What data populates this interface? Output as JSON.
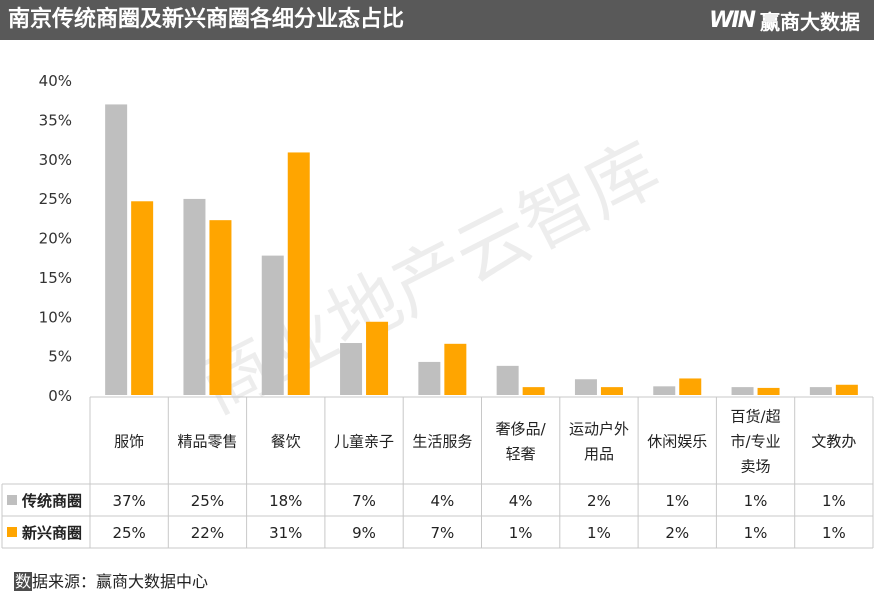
{
  "header": {
    "title": "南京传统商圈及新兴商圈各细分业态占比",
    "logo_mark": "WIN",
    "brand": "赢商大数据"
  },
  "watermark": "商业地产云智库",
  "source": {
    "first_char": "数",
    "rest": "据来源：赢商大数据中心"
  },
  "colors": {
    "traditional": "#bfbfbf",
    "emerging": "#ffa500",
    "header_bg": "#595959"
  },
  "chart_data": {
    "type": "bar",
    "title": "",
    "xlabel": "",
    "ylabel": "",
    "ylim": [
      0,
      40
    ],
    "yticks": [
      0,
      5,
      10,
      15,
      20,
      25,
      30,
      35,
      40
    ],
    "ytick_labels": [
      "0%",
      "5%",
      "10%",
      "15%",
      "20%",
      "25%",
      "30%",
      "35%",
      "40%"
    ],
    "grid": false,
    "legend": "in data table",
    "categories": [
      [
        "服饰"
      ],
      [
        "精品零售"
      ],
      [
        "餐饮"
      ],
      [
        "儿童亲子"
      ],
      [
        "生活服务"
      ],
      [
        "奢侈品/",
        "轻奢"
      ],
      [
        "运动户外",
        "用品"
      ],
      [
        "休闲娱乐"
      ],
      [
        "百货/超",
        "市/专业",
        "卖场"
      ],
      [
        "文教办"
      ]
    ],
    "series": [
      {
        "name": "传统商圈",
        "color": "#bfbfbf",
        "values": [
          36.9,
          24.9,
          17.7,
          6.6,
          4.2,
          3.7,
          2.0,
          1.1,
          1.0,
          1.0
        ],
        "labels": [
          "37%",
          "25%",
          "18%",
          "7%",
          "4%",
          "4%",
          "2%",
          "1%",
          "1%",
          "1%"
        ]
      },
      {
        "name": "新兴商圈",
        "color": "#ffa500",
        "values": [
          24.6,
          22.2,
          30.8,
          9.3,
          6.5,
          1.0,
          1.0,
          2.1,
          0.9,
          1.3
        ],
        "labels": [
          "25%",
          "22%",
          "31%",
          "9%",
          "7%",
          "1%",
          "1%",
          "2%",
          "1%",
          "1%"
        ]
      }
    ]
  }
}
